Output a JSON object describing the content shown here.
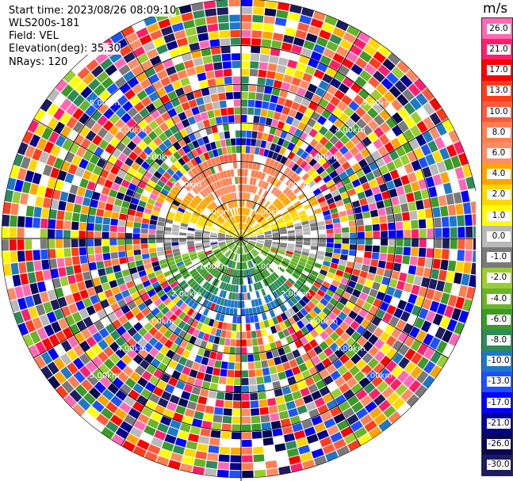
{
  "header": {
    "start_time": "Start time: 2023/08/26 08:09:10",
    "instrument": "WLS200s-181",
    "field": "Field: VEL",
    "elevation": "Elevation(deg): 35.30",
    "nrays": "NRays: 120"
  },
  "colorbar": {
    "unit": "m/s",
    "ticks": [
      "26.0",
      "21.0",
      "17.0",
      "13.0",
      "10.0",
      "8.0",
      "6.0",
      "4.0",
      "2.0",
      "1.0",
      "0.0",
      "-1.0",
      "-2.0",
      "-4.0",
      "-6.0",
      "-8.0",
      "-10.0",
      "-13.0",
      "-17.0",
      "-21.0",
      "-26.0",
      "-30.0"
    ],
    "colors": [
      "#ff69b4",
      "#ff1f6a",
      "#ff0000",
      "#ff3c1c",
      "#ff5a3c",
      "#ff7f50",
      "#ff8c64",
      "#ffa500",
      "#ffd700",
      "#ffff00",
      "#b9b9b9",
      "#7a7a7a",
      "#9acd32",
      "#6ab42a",
      "#3c9a28",
      "#2e8b57",
      "#1e78c8",
      "#1f50ff",
      "#0000ff",
      "#00008b",
      "#080850",
      "#1c1c60"
    ]
  },
  "range_ring_labels": [
    "1.00km",
    "2.00km",
    "3.00km",
    "4.00km",
    "5.00km"
  ],
  "chart_data": {
    "type": "heatmap",
    "title": "",
    "field": "VEL",
    "units": "m/s",
    "scan": "PPI",
    "elevation_deg": 35.3,
    "n_rays": 120,
    "range_rings_km": [
      1,
      2,
      3,
      4,
      5
    ],
    "max_range_km": 6.2,
    "range_gate_km": 0.2,
    "spoke_angles_deg": [
      0,
      30,
      60,
      90,
      120,
      150,
      180,
      210,
      240,
      270,
      300,
      330
    ],
    "color_scale": {
      "vmin": -30,
      "vmax": 26
    },
    "pattern_summary": {
      "north_sector_near_range_m_s": [
        3,
        10
      ],
      "south_sector_near_range_m_s": [
        -10,
        -3
      ],
      "near_zero_band": "east-west, gray",
      "clean_signal_radius_km": 2.3,
      "beyond_clean_radius": "noise (random values)"
    }
  }
}
